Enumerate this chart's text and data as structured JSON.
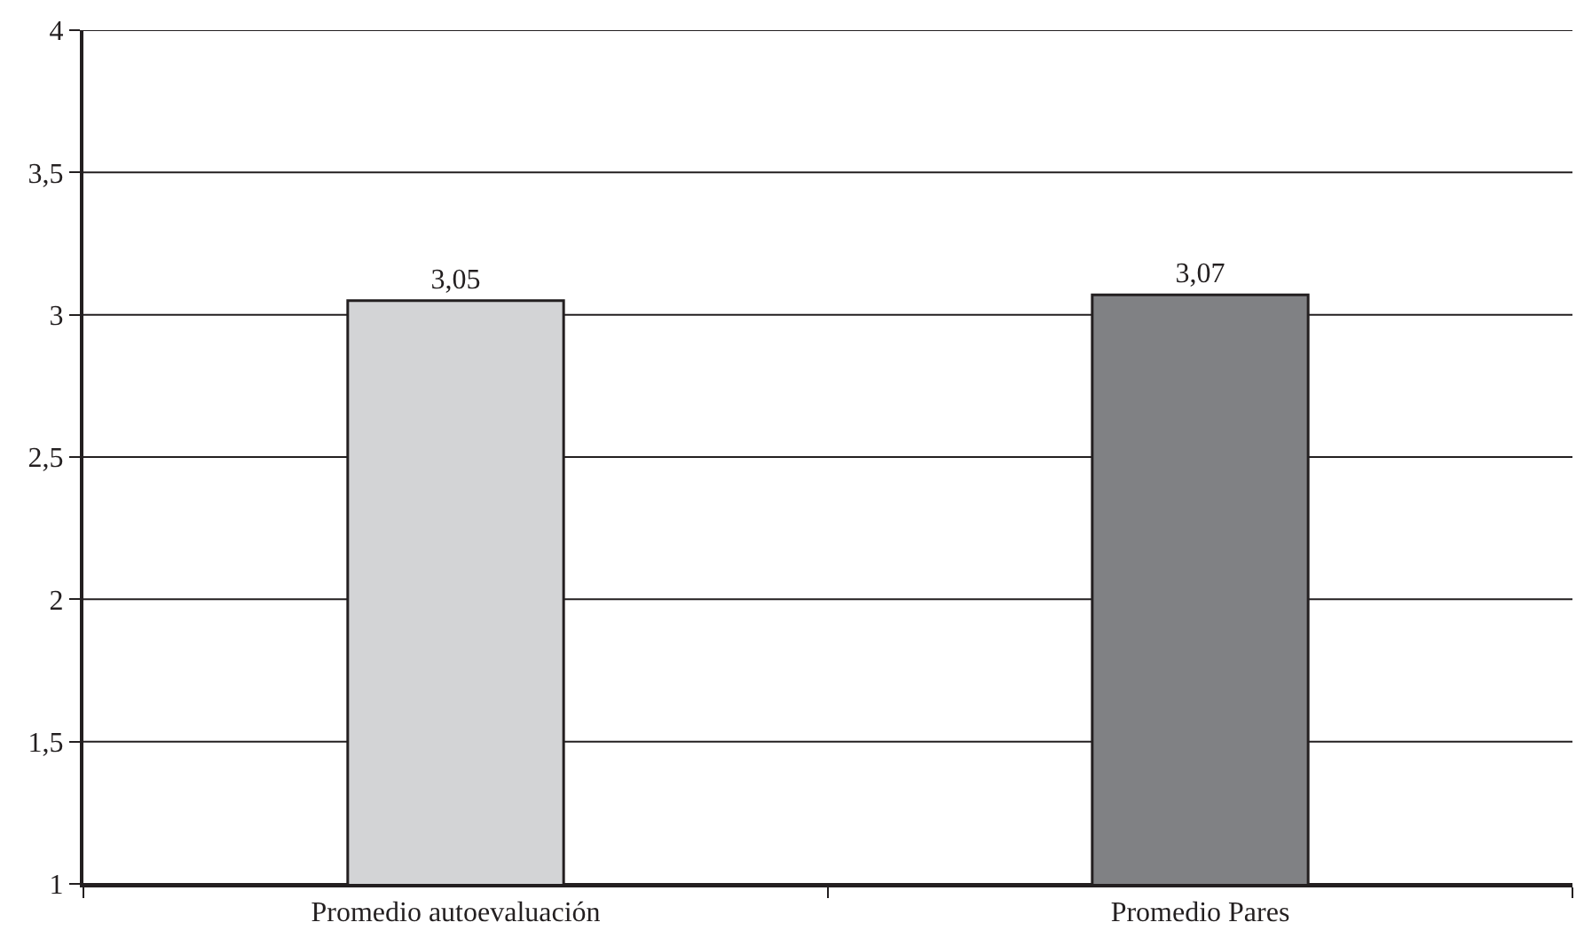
{
  "chart_data": {
    "type": "bar",
    "categories": [
      "Promedio autoevaluación",
      "Promedio Pares"
    ],
    "values": [
      3.05,
      3.07
    ],
    "colors": [
      "#d3d4d6",
      "#808184"
    ],
    "value_labels": [
      "3,05",
      "3,07"
    ],
    "ylim": [
      1,
      4
    ],
    "yticks": [
      1,
      {
        "value": 1.5,
        "label": "1,5"
      },
      2,
      {
        "value": 2.5,
        "label": "2,5"
      },
      3,
      {
        "value": 3.5,
        "label": "3,5"
      },
      4
    ],
    "grid": "y",
    "legend": false
  }
}
